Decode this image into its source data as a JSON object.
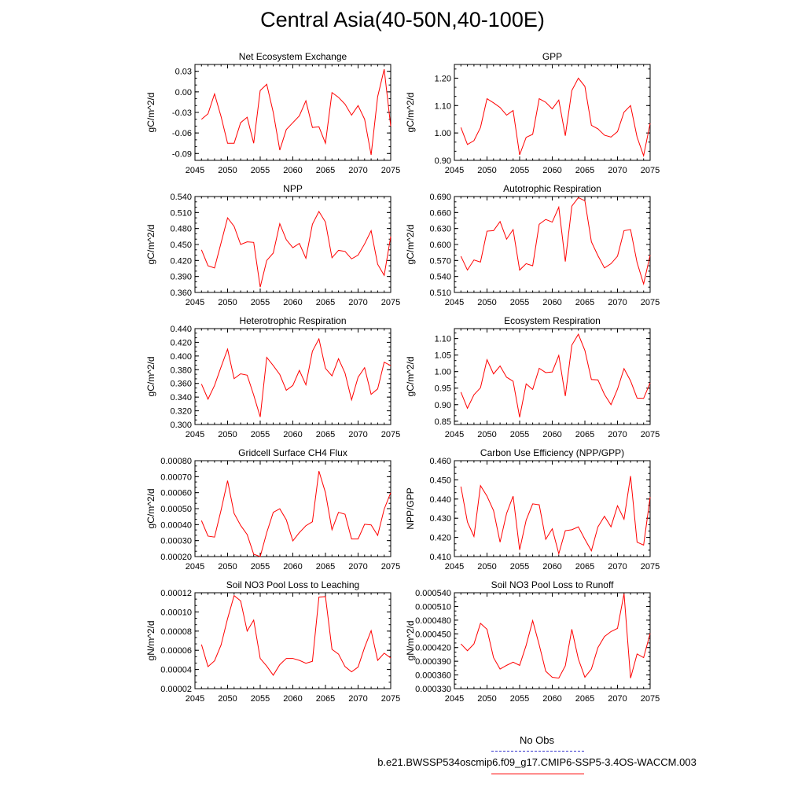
{
  "title": "Central Asia(40-50N,40-100E)",
  "colors": {
    "model": "#ff0000",
    "obs": "#3333cc",
    "axis": "#000000"
  },
  "legend": {
    "obs_label": "No Obs",
    "model_label": "b.e21.BWSSP534oscmip6.f09_g17.CMIP6-SSP5-3.4OS-WACCM.003"
  },
  "chart_data": [
    {
      "type": "line",
      "title": "Net Ecosystem Exchange",
      "ylabel": "gC/m^2/d",
      "xlim": [
        2045,
        2075
      ],
      "ylim": [
        -0.1,
        0.04
      ],
      "xticks": [
        "2045",
        "2050",
        "2055",
        "2060",
        "2065",
        "2070",
        "2075"
      ],
      "yticks": [
        "-0.09",
        "-0.06",
        "-0.03",
        "0.00",
        "0.03"
      ],
      "x": [
        2046,
        2047,
        2048,
        2049,
        2050,
        2051,
        2052,
        2053,
        2054,
        2055,
        2056,
        2057,
        2058,
        2059,
        2060,
        2061,
        2062,
        2063,
        2064,
        2065,
        2066,
        2067,
        2068,
        2069,
        2070,
        2071,
        2072,
        2073,
        2074,
        2075
      ],
      "series": [
        {
          "name": "model",
          "values": [
            -0.04,
            -0.032,
            -0.003,
            -0.036,
            -0.075,
            -0.075,
            -0.045,
            -0.037,
            -0.075,
            0.002,
            0.011,
            -0.03,
            -0.085,
            -0.055,
            -0.045,
            -0.035,
            -0.013,
            -0.052,
            -0.051,
            -0.075,
            -0.001,
            -0.008,
            -0.018,
            -0.034,
            -0.02,
            -0.04,
            -0.092,
            -0.007,
            0.033,
            -0.05
          ]
        }
      ]
    },
    {
      "type": "line",
      "title": "GPP",
      "ylabel": "gC/m^2/d",
      "xlim": [
        2045,
        2075
      ],
      "ylim": [
        0.9,
        1.25
      ],
      "xticks": [
        "2045",
        "2050",
        "2055",
        "2060",
        "2065",
        "2070",
        "2075"
      ],
      "yticks": [
        "0.90",
        "1.00",
        "1.10",
        "1.20"
      ],
      "x": [
        2046,
        2047,
        2048,
        2049,
        2050,
        2051,
        2052,
        2053,
        2054,
        2055,
        2056,
        2057,
        2058,
        2059,
        2060,
        2061,
        2062,
        2063,
        2064,
        2065,
        2066,
        2067,
        2068,
        2069,
        2070,
        2071,
        2072,
        2073,
        2074,
        2075
      ],
      "series": [
        {
          "name": "model",
          "values": [
            1.02,
            0.958,
            0.972,
            1.02,
            1.125,
            1.11,
            1.093,
            1.065,
            1.082,
            0.92,
            0.984,
            0.995,
            1.125,
            1.112,
            1.088,
            1.12,
            0.99,
            1.155,
            1.2,
            1.17,
            1.028,
            1.015,
            0.992,
            0.985,
            1.005,
            1.076,
            1.1,
            0.985,
            0.917,
            1.035
          ]
        }
      ]
    },
    {
      "type": "line",
      "title": "NPP",
      "ylabel": "gC/m^2/d",
      "xlim": [
        2045,
        2075
      ],
      "ylim": [
        0.36,
        0.54
      ],
      "xticks": [
        "2045",
        "2050",
        "2055",
        "2060",
        "2065",
        "2070",
        "2075"
      ],
      "yticks": [
        "0.360",
        "0.390",
        "0.420",
        "0.450",
        "0.480",
        "0.510",
        "0.540"
      ],
      "x": [
        2046,
        2047,
        2048,
        2049,
        2050,
        2051,
        2052,
        2053,
        2054,
        2055,
        2056,
        2057,
        2058,
        2059,
        2060,
        2061,
        2062,
        2063,
        2064,
        2065,
        2066,
        2067,
        2068,
        2069,
        2070,
        2071,
        2072,
        2073,
        2074,
        2075
      ],
      "series": [
        {
          "name": "model",
          "values": [
            0.44,
            0.41,
            0.406,
            0.453,
            0.5,
            0.484,
            0.45,
            0.455,
            0.454,
            0.37,
            0.42,
            0.434,
            0.489,
            0.459,
            0.444,
            0.452,
            0.424,
            0.488,
            0.512,
            0.492,
            0.425,
            0.439,
            0.437,
            0.423,
            0.43,
            0.451,
            0.476,
            0.413,
            0.392,
            0.465
          ]
        }
      ]
    },
    {
      "type": "line",
      "title": "Autotrophic Respiration",
      "ylabel": "gC/m^2/d",
      "xlim": [
        2045,
        2075
      ],
      "ylim": [
        0.51,
        0.69
      ],
      "xticks": [
        "2045",
        "2050",
        "2055",
        "2060",
        "2065",
        "2070",
        "2075"
      ],
      "yticks": [
        "0.510",
        "0.540",
        "0.570",
        "0.600",
        "0.630",
        "0.660",
        "0.690"
      ],
      "x": [
        2046,
        2047,
        2048,
        2049,
        2050,
        2051,
        2052,
        2053,
        2054,
        2055,
        2056,
        2057,
        2058,
        2059,
        2060,
        2061,
        2062,
        2063,
        2064,
        2065,
        2066,
        2067,
        2068,
        2069,
        2070,
        2071,
        2072,
        2073,
        2074,
        2075
      ],
      "series": [
        {
          "name": "model",
          "values": [
            0.578,
            0.552,
            0.571,
            0.567,
            0.625,
            0.626,
            0.643,
            0.61,
            0.628,
            0.552,
            0.564,
            0.56,
            0.638,
            0.647,
            0.642,
            0.67,
            0.568,
            0.672,
            0.688,
            0.682,
            0.605,
            0.579,
            0.556,
            0.564,
            0.578,
            0.626,
            0.628,
            0.566,
            0.526,
            0.58
          ]
        }
      ]
    },
    {
      "type": "line",
      "title": "Heterotrophic Respiration",
      "ylabel": "gC/m^2/d",
      "xlim": [
        2045,
        2075
      ],
      "ylim": [
        0.3,
        0.44
      ],
      "xticks": [
        "2045",
        "2050",
        "2055",
        "2060",
        "2065",
        "2070",
        "2075"
      ],
      "yticks": [
        "0.300",
        "0.320",
        "0.340",
        "0.360",
        "0.380",
        "0.400",
        "0.420",
        "0.440"
      ],
      "x": [
        2046,
        2047,
        2048,
        2049,
        2050,
        2051,
        2052,
        2053,
        2054,
        2055,
        2056,
        2057,
        2058,
        2059,
        2060,
        2061,
        2062,
        2063,
        2064,
        2065,
        2066,
        2067,
        2068,
        2069,
        2070,
        2071,
        2072,
        2073,
        2074,
        2075
      ],
      "series": [
        {
          "name": "model",
          "values": [
            0.359,
            0.337,
            0.357,
            0.384,
            0.41,
            0.367,
            0.374,
            0.372,
            0.343,
            0.311,
            0.398,
            0.386,
            0.373,
            0.35,
            0.357,
            0.379,
            0.358,
            0.407,
            0.425,
            0.382,
            0.371,
            0.396,
            0.375,
            0.336,
            0.369,
            0.383,
            0.344,
            0.352,
            0.391,
            0.386
          ]
        }
      ]
    },
    {
      "type": "line",
      "title": "Ecosystem Respiration",
      "ylabel": "gC/m^2/d",
      "xlim": [
        2045,
        2075
      ],
      "ylim": [
        0.84,
        1.13
      ],
      "xticks": [
        "2045",
        "2050",
        "2055",
        "2060",
        "2065",
        "2070",
        "2075"
      ],
      "yticks": [
        "0.85",
        "0.90",
        "0.95",
        "1.00",
        "1.05",
        "1.10"
      ],
      "x": [
        2046,
        2047,
        2048,
        2049,
        2050,
        2051,
        2052,
        2053,
        2054,
        2055,
        2056,
        2057,
        2058,
        2059,
        2060,
        2061,
        2062,
        2063,
        2064,
        2065,
        2066,
        2067,
        2068,
        2069,
        2070,
        2071,
        2072,
        2073,
        2074,
        2075
      ],
      "series": [
        {
          "name": "model",
          "values": [
            0.938,
            0.889,
            0.93,
            0.951,
            1.036,
            0.993,
            1.017,
            0.983,
            0.971,
            0.862,
            0.963,
            0.946,
            1.01,
            0.997,
            0.999,
            1.049,
            0.926,
            1.08,
            1.113,
            1.064,
            0.976,
            0.975,
            0.931,
            0.9,
            0.947,
            1.009,
            0.972,
            0.92,
            0.919,
            0.966
          ]
        }
      ]
    },
    {
      "type": "line",
      "title": "Gridcell Surface CH4 Flux",
      "ylabel": "gC/m^2/d",
      "xlim": [
        2045,
        2075
      ],
      "ylim": [
        0.0002,
        0.0008
      ],
      "xticks": [
        "2045",
        "2050",
        "2055",
        "2060",
        "2065",
        "2070",
        "2075"
      ],
      "yticks": [
        "0.00020",
        "0.00030",
        "0.00040",
        "0.00050",
        "0.00060",
        "0.00070",
        "0.00080"
      ],
      "x": [
        2046,
        2047,
        2048,
        2049,
        2050,
        2051,
        2052,
        2053,
        2054,
        2055,
        2056,
        2057,
        2058,
        2059,
        2060,
        2061,
        2062,
        2063,
        2064,
        2065,
        2066,
        2067,
        2068,
        2069,
        2070,
        2071,
        2072,
        2073,
        2074,
        2075
      ],
      "series": [
        {
          "name": "model",
          "values": [
            0.000425,
            0.000328,
            0.000322,
            0.00049,
            0.000675,
            0.00047,
            0.000395,
            0.000338,
            0.000215,
            0.0002,
            0.00035,
            0.000477,
            0.000499,
            0.00043,
            0.000298,
            0.00035,
            0.000393,
            0.000418,
            0.000735,
            0.0006,
            0.000368,
            0.000477,
            0.000465,
            0.00031,
            0.00031,
            0.000402,
            0.000398,
            0.000332,
            0.000497,
            0.0006
          ]
        }
      ]
    },
    {
      "type": "line",
      "title": "Carbon Use Efficiency (NPP/GPP)",
      "ylabel": "NPP/GPP",
      "xlim": [
        2045,
        2075
      ],
      "ylim": [
        0.41,
        0.46
      ],
      "xticks": [
        "2045",
        "2050",
        "2055",
        "2060",
        "2065",
        "2070",
        "2075"
      ],
      "yticks": [
        "0.410",
        "0.420",
        "0.430",
        "0.440",
        "0.450",
        "0.460"
      ],
      "x": [
        2046,
        2047,
        2048,
        2049,
        2050,
        2051,
        2052,
        2053,
        2054,
        2055,
        2056,
        2057,
        2058,
        2059,
        2060,
        2061,
        2062,
        2063,
        2064,
        2065,
        2066,
        2067,
        2068,
        2069,
        2070,
        2071,
        2072,
        2073,
        2074,
        2075
      ],
      "series": [
        {
          "name": "model",
          "values": [
            0.4465,
            0.428,
            0.4205,
            0.447,
            0.4415,
            0.434,
            0.4175,
            0.4325,
            0.4415,
            0.4135,
            0.429,
            0.4375,
            0.437,
            0.419,
            0.4245,
            0.4115,
            0.4235,
            0.424,
            0.4255,
            0.419,
            0.413,
            0.4255,
            0.431,
            0.4255,
            0.4365,
            0.4295,
            0.452,
            0.4175,
            0.416,
            0.441
          ]
        }
      ]
    },
    {
      "type": "line",
      "title": "Soil NO3 Pool Loss to Leaching",
      "ylabel": "gN/m^2/d",
      "xlim": [
        2045,
        2075
      ],
      "ylim": [
        2e-05,
        0.00012
      ],
      "xticks": [
        "2045",
        "2050",
        "2055",
        "2060",
        "2065",
        "2070",
        "2075"
      ],
      "yticks": [
        "0.00002",
        "0.00004",
        "0.00006",
        "0.00008",
        "0.00010",
        "0.00012"
      ],
      "x": [
        2046,
        2047,
        2048,
        2049,
        2050,
        2051,
        2052,
        2053,
        2054,
        2055,
        2056,
        2057,
        2058,
        2059,
        2060,
        2061,
        2062,
        2063,
        2064,
        2065,
        2066,
        2067,
        2068,
        2069,
        2070,
        2071,
        2072,
        2073,
        2074,
        2075
      ],
      "series": [
        {
          "name": "model",
          "values": [
            6.6e-05,
            4.3e-05,
            4.9e-05,
            6.55e-05,
            9.3e-05,
            0.000117,
            0.0001115,
            8e-05,
            9.15e-05,
            5.15e-05,
            4.35e-05,
            3.4e-05,
            4.5e-05,
            5.15e-05,
            5.15e-05,
            4.95e-05,
            4.65e-05,
            4.85e-05,
            0.0001155,
            0.000116,
            6.1e-05,
            5.6e-05,
            4.3e-05,
            3.75e-05,
            4.25e-05,
            6.3e-05,
            8.05e-05,
            4.95e-05,
            5.7e-05,
            5.2e-05
          ]
        }
      ]
    },
    {
      "type": "line",
      "title": "Soil NO3 Pool Loss to Runoff",
      "ylabel": "gN/m^2/d",
      "xlim": [
        2045,
        2075
      ],
      "ylim": [
        0.00033,
        0.00054
      ],
      "xticks": [
        "2045",
        "2050",
        "2055",
        "2060",
        "2065",
        "2070",
        "2075"
      ],
      "yticks": [
        "0.000330",
        "0.000360",
        "0.000390",
        "0.000420",
        "0.000450",
        "0.000480",
        "0.000510",
        "0.000540"
      ],
      "x": [
        2046,
        2047,
        2048,
        2049,
        2050,
        2051,
        2052,
        2053,
        2054,
        2055,
        2056,
        2057,
        2058,
        2059,
        2060,
        2061,
        2062,
        2063,
        2064,
        2065,
        2066,
        2067,
        2068,
        2069,
        2070,
        2071,
        2072,
        2073,
        2074,
        2075
      ],
      "series": [
        {
          "name": "model",
          "values": [
            0.000428,
            0.000413,
            0.000428,
            0.000473,
            0.00046,
            0.000398,
            0.000373,
            0.000381,
            0.000388,
            0.000381,
            0.000425,
            0.000479,
            0.000426,
            0.000368,
            0.000355,
            0.000353,
            0.00038,
            0.00046,
            0.000395,
            0.000355,
            0.000373,
            0.00042,
            0.000444,
            0.000455,
            0.000462,
            0.000538,
            0.000353,
            0.000406,
            0.000398,
            0.000451
          ]
        }
      ]
    }
  ]
}
